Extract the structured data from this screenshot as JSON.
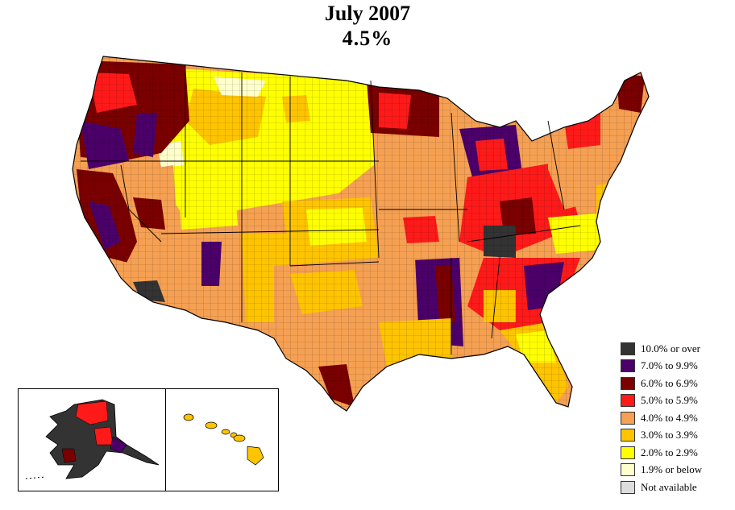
{
  "title": {
    "date": "July 2007",
    "rate": "4.5%"
  },
  "colors": {
    "over10": "#333333",
    "r7to9": "#4b0069",
    "r6to6": "#7a0000",
    "r5to5": "#ff1a1a",
    "r4to4": "#f5a052",
    "r3to3": "#ffc400",
    "r2to2": "#ffff00",
    "below1_9": "#ffffcc",
    "na": "#dddddd"
  },
  "legend": [
    {
      "label": "10.0% or over",
      "color": "#333333"
    },
    {
      "label": "7.0% to 9.9%",
      "color": "#4b0069"
    },
    {
      "label": "6.0% to 6.9%",
      "color": "#7a0000"
    },
    {
      "label": "5.0% to 5.9%",
      "color": "#ff1a1a"
    },
    {
      "label": "4.0% to 4.9%",
      "color": "#f5a052"
    },
    {
      "label": "3.0% to 3.9%",
      "color": "#ffc400"
    },
    {
      "label": "2.0% to 2.9%",
      "color": "#ffff00"
    },
    {
      "label": "1.9% or below",
      "color": "#ffffcc"
    },
    {
      "label": "Not available",
      "color": "#dddddd"
    }
  ],
  "regions": [
    {
      "name": "pacific-northwest",
      "band": "6.0% to 6.9%"
    },
    {
      "name": "northern-plains",
      "band": "2.0% to 2.9%"
    },
    {
      "name": "southwest",
      "band": "4.0% to 4.9%"
    },
    {
      "name": "texas",
      "band": "4.0% to 4.9%"
    },
    {
      "name": "mississippi-delta",
      "band": "7.0% to 9.9%"
    },
    {
      "name": "michigan",
      "band": "7.0% to 9.9%"
    },
    {
      "name": "southeast",
      "band": "5.0% to 5.9%"
    },
    {
      "name": "northeast",
      "band": "4.0% to 4.9%"
    },
    {
      "name": "florida",
      "band": "3.0% to 3.9%"
    },
    {
      "name": "alaska",
      "band": "10.0% or over"
    },
    {
      "name": "hawaii",
      "band": "3.0% to 3.9%"
    }
  ]
}
